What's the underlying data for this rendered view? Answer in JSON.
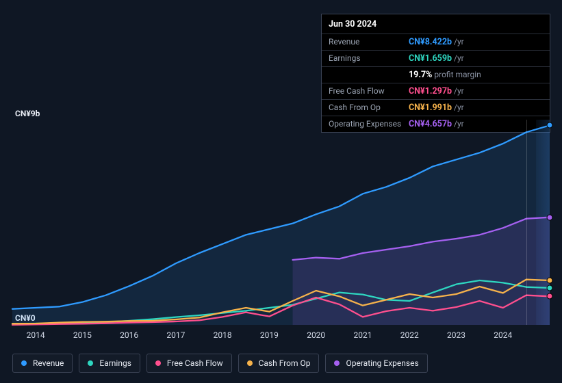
{
  "tooltip": {
    "date": "Jun 30 2024",
    "rows": [
      {
        "label": "Revenue",
        "value": "CN¥8.422b",
        "unit": "/yr",
        "color": "#2f9bff"
      },
      {
        "label": "Earnings",
        "value": "CN¥1.659b",
        "unit": "/yr",
        "color": "#2ed6c0"
      },
      {
        "label": "",
        "value": "19.7%",
        "unit": "profit margin",
        "color": "#ffffff"
      },
      {
        "label": "Free Cash Flow",
        "value": "CN¥1.297b",
        "unit": "/yr",
        "color": "#ff4f8e"
      },
      {
        "label": "Cash From Op",
        "value": "CN¥1.991b",
        "unit": "/yr",
        "color": "#f6b24b"
      },
      {
        "label": "Operating Expenses",
        "value": "CN¥4.657b",
        "unit": "/yr",
        "color": "#a560f0"
      }
    ]
  },
  "y_axis": {
    "top_label": "CN¥9b",
    "bottom_label": "CN¥0",
    "ymin": 0,
    "ymax": 9
  },
  "x_axis": {
    "years": [
      2014,
      2015,
      2016,
      2017,
      2018,
      2019,
      2020,
      2021,
      2022,
      2023,
      2024
    ],
    "xmin": 2013.5,
    "xmax": 2025.0
  },
  "chart": {
    "background": "#0f1724",
    "future_band_start": 2024.7,
    "guide_x": 2024.5,
    "line_width": 2.3,
    "font_family": "-apple-system, Segoe UI, Roboto, Arial, sans-serif",
    "tick_fontsize": 12
  },
  "series": [
    {
      "name": "Revenue",
      "color": "#2f9bff",
      "fill": true,
      "fill_color": "rgba(47,155,255,0.12)",
      "marker_x": 2025.0,
      "marker_y": 8.75,
      "data": [
        [
          2013.5,
          0.7
        ],
        [
          2014.0,
          0.75
        ],
        [
          2014.5,
          0.8
        ],
        [
          2015.0,
          1.0
        ],
        [
          2015.5,
          1.3
        ],
        [
          2016.0,
          1.7
        ],
        [
          2016.5,
          2.15
        ],
        [
          2017.0,
          2.7
        ],
        [
          2017.5,
          3.15
        ],
        [
          2018.0,
          3.55
        ],
        [
          2018.5,
          3.95
        ],
        [
          2019.0,
          4.2
        ],
        [
          2019.5,
          4.45
        ],
        [
          2020.0,
          4.85
        ],
        [
          2020.5,
          5.2
        ],
        [
          2021.0,
          5.75
        ],
        [
          2021.5,
          6.05
        ],
        [
          2022.0,
          6.45
        ],
        [
          2022.5,
          6.95
        ],
        [
          2023.0,
          7.25
        ],
        [
          2023.5,
          7.55
        ],
        [
          2024.0,
          7.95
        ],
        [
          2024.5,
          8.45
        ],
        [
          2025.0,
          8.75
        ]
      ]
    },
    {
      "name": "Earnings",
      "color": "#2ed6c0",
      "fill": false,
      "marker_x": 2025.0,
      "marker_y": 1.62,
      "data": [
        [
          2013.5,
          0.05
        ],
        [
          2014.0,
          0.06
        ],
        [
          2014.5,
          0.06
        ],
        [
          2015.0,
          0.08
        ],
        [
          2015.5,
          0.12
        ],
        [
          2016.0,
          0.18
        ],
        [
          2016.5,
          0.25
        ],
        [
          2017.0,
          0.34
        ],
        [
          2017.5,
          0.42
        ],
        [
          2018.0,
          0.52
        ],
        [
          2018.5,
          0.62
        ],
        [
          2019.0,
          0.75
        ],
        [
          2019.5,
          0.88
        ],
        [
          2020.0,
          1.15
        ],
        [
          2020.5,
          1.42
        ],
        [
          2021.0,
          1.33
        ],
        [
          2021.5,
          1.1
        ],
        [
          2022.0,
          1.05
        ],
        [
          2022.5,
          1.42
        ],
        [
          2023.0,
          1.78
        ],
        [
          2023.5,
          1.95
        ],
        [
          2024.0,
          1.85
        ],
        [
          2024.5,
          1.66
        ],
        [
          2025.0,
          1.62
        ]
      ]
    },
    {
      "name": "Free Cash Flow",
      "color": "#ff4f8e",
      "fill": false,
      "marker_x": 2025.0,
      "marker_y": 1.25,
      "data": [
        [
          2013.5,
          0.0
        ],
        [
          2014.0,
          0.02
        ],
        [
          2014.5,
          0.04
        ],
        [
          2015.0,
          0.05
        ],
        [
          2015.5,
          0.07
        ],
        [
          2016.0,
          0.1
        ],
        [
          2016.5,
          0.12
        ],
        [
          2017.0,
          0.15
        ],
        [
          2017.5,
          0.2
        ],
        [
          2018.0,
          0.35
        ],
        [
          2018.5,
          0.55
        ],
        [
          2019.0,
          0.37
        ],
        [
          2019.5,
          0.85
        ],
        [
          2020.0,
          1.2
        ],
        [
          2020.5,
          0.9
        ],
        [
          2021.0,
          0.35
        ],
        [
          2021.5,
          0.6
        ],
        [
          2022.0,
          0.75
        ],
        [
          2022.5,
          0.62
        ],
        [
          2023.0,
          0.78
        ],
        [
          2023.5,
          1.05
        ],
        [
          2024.0,
          0.75
        ],
        [
          2024.5,
          1.3
        ],
        [
          2025.0,
          1.25
        ]
      ]
    },
    {
      "name": "Cash From Op",
      "color": "#f6b24b",
      "fill": false,
      "marker_x": 2025.0,
      "marker_y": 1.95,
      "data": [
        [
          2013.5,
          0.05
        ],
        [
          2014.0,
          0.06
        ],
        [
          2014.5,
          0.1
        ],
        [
          2015.0,
          0.13
        ],
        [
          2015.5,
          0.14
        ],
        [
          2016.0,
          0.17
        ],
        [
          2016.5,
          0.18
        ],
        [
          2017.0,
          0.24
        ],
        [
          2017.5,
          0.32
        ],
        [
          2018.0,
          0.55
        ],
        [
          2018.5,
          0.75
        ],
        [
          2019.0,
          0.58
        ],
        [
          2019.5,
          1.05
        ],
        [
          2020.0,
          1.5
        ],
        [
          2020.5,
          1.25
        ],
        [
          2021.0,
          0.85
        ],
        [
          2021.5,
          1.1
        ],
        [
          2022.0,
          1.35
        ],
        [
          2022.5,
          1.2
        ],
        [
          2023.0,
          1.35
        ],
        [
          2023.5,
          1.68
        ],
        [
          2024.0,
          1.4
        ],
        [
          2024.5,
          1.99
        ],
        [
          2025.0,
          1.95
        ]
      ]
    },
    {
      "name": "Operating Expenses",
      "color": "#a560f0",
      "fill": true,
      "fill_color": "rgba(165,96,240,0.14)",
      "marker_x": 2025.0,
      "marker_y": 4.72,
      "data": [
        [
          2019.5,
          2.85
        ],
        [
          2020.0,
          2.95
        ],
        [
          2020.5,
          2.9
        ],
        [
          2021.0,
          3.15
        ],
        [
          2021.5,
          3.3
        ],
        [
          2022.0,
          3.45
        ],
        [
          2022.5,
          3.65
        ],
        [
          2023.0,
          3.78
        ],
        [
          2023.5,
          3.95
        ],
        [
          2024.0,
          4.25
        ],
        [
          2024.5,
          4.66
        ],
        [
          2025.0,
          4.72
        ]
      ]
    }
  ],
  "legend": {
    "items": [
      {
        "label": "Revenue",
        "color": "#2f9bff"
      },
      {
        "label": "Earnings",
        "color": "#2ed6c0"
      },
      {
        "label": "Free Cash Flow",
        "color": "#ff4f8e"
      },
      {
        "label": "Cash From Op",
        "color": "#f6b24b"
      },
      {
        "label": "Operating Expenses",
        "color": "#a560f0"
      }
    ]
  }
}
